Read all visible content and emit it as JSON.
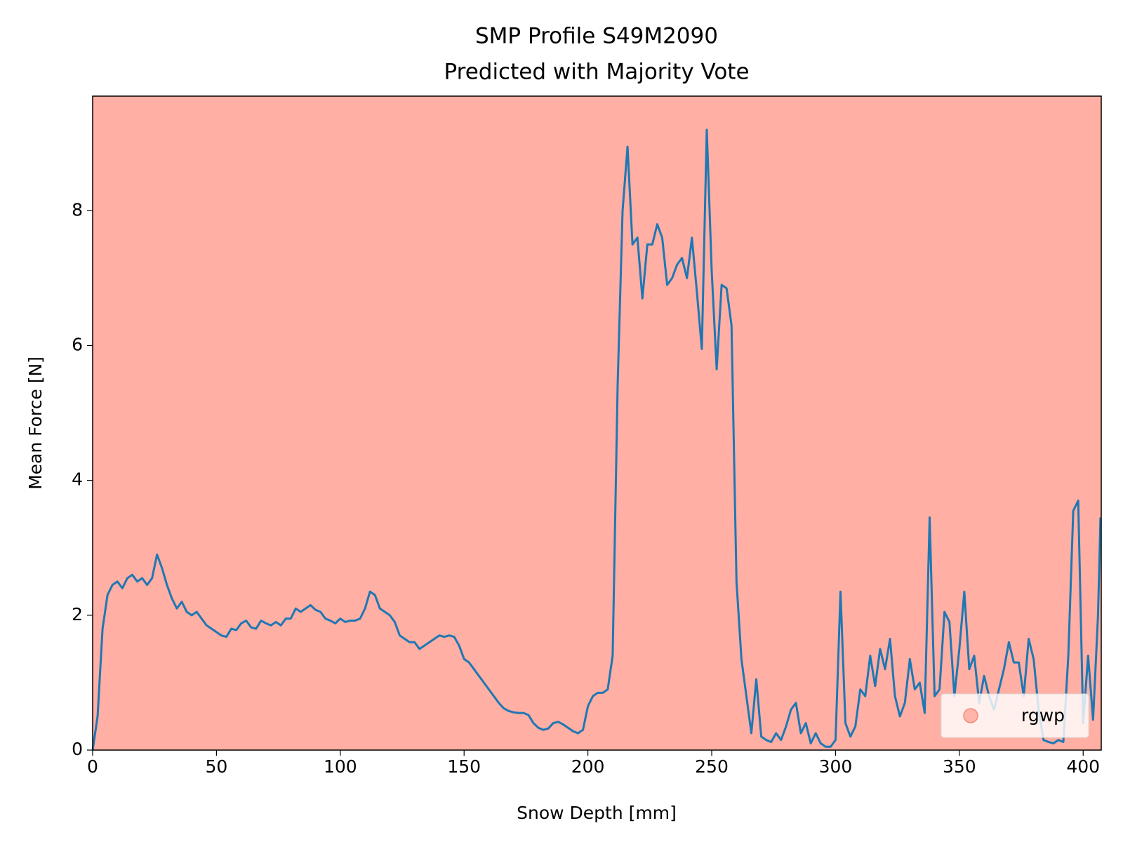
{
  "chart_data": {
    "type": "line",
    "title": "SMP Profile S49M2090",
    "subtitle": "Predicted with Majority Vote",
    "x_label": "Snow Depth [mm]",
    "y_label": "Mean Force [N]",
    "x": [
      0,
      2,
      4,
      6,
      8,
      10,
      12,
      14,
      16,
      18,
      20,
      22,
      24,
      26,
      28,
      30,
      32,
      34,
      36,
      38,
      40,
      42,
      44,
      46,
      48,
      50,
      52,
      54,
      56,
      58,
      60,
      62,
      64,
      66,
      68,
      70,
      72,
      74,
      76,
      78,
      80,
      82,
      84,
      86,
      88,
      90,
      92,
      94,
      96,
      98,
      100,
      102,
      104,
      106,
      108,
      110,
      112,
      114,
      116,
      118,
      120,
      122,
      124,
      126,
      128,
      130,
      132,
      134,
      136,
      138,
      140,
      142,
      144,
      146,
      148,
      150,
      152,
      154,
      156,
      158,
      160,
      162,
      164,
      166,
      168,
      170,
      172,
      174,
      176,
      178,
      180,
      182,
      184,
      186,
      188,
      190,
      192,
      194,
      196,
      198,
      200,
      202,
      204,
      206,
      208,
      210,
      212,
      214,
      216,
      218,
      220,
      222,
      224,
      226,
      228,
      230,
      232,
      234,
      236,
      238,
      240,
      242,
      244,
      246,
      248,
      250,
      252,
      254,
      256,
      258,
      260,
      262,
      264,
      266,
      268,
      270,
      272,
      274,
      276,
      278,
      280,
      282,
      284,
      286,
      288,
      290,
      292,
      294,
      296,
      298,
      300,
      302,
      304,
      306,
      308,
      310,
      312,
      314,
      316,
      318,
      320,
      322,
      324,
      326,
      328,
      330,
      332,
      334,
      336,
      338,
      340,
      342,
      344,
      346,
      348,
      350,
      352,
      354,
      356,
      358,
      360,
      362,
      364,
      366,
      368,
      370,
      372,
      374,
      376,
      378,
      380,
      382,
      384,
      386,
      388,
      390,
      392,
      394,
      396,
      398,
      400,
      402,
      404,
      406,
      407
    ],
    "series": [
      {
        "color": "#1f77b4",
        "values": [
          0,
          0.5,
          1.8,
          2.3,
          2.45,
          2.5,
          2.4,
          2.55,
          2.6,
          2.5,
          2.55,
          2.45,
          2.55,
          2.9,
          2.7,
          2.45,
          2.25,
          2.1,
          2.2,
          2.05,
          2.0,
          2.05,
          1.95,
          1.85,
          1.8,
          1.75,
          1.7,
          1.68,
          1.8,
          1.78,
          1.88,
          1.92,
          1.82,
          1.8,
          1.92,
          1.88,
          1.85,
          1.9,
          1.85,
          1.95,
          1.95,
          2.1,
          2.05,
          2.1,
          2.15,
          2.08,
          2.05,
          1.95,
          1.92,
          1.88,
          1.95,
          1.9,
          1.92,
          1.92,
          1.95,
          2.1,
          2.35,
          2.3,
          2.1,
          2.05,
          2.0,
          1.9,
          1.7,
          1.65,
          1.6,
          1.6,
          1.5,
          1.55,
          1.6,
          1.65,
          1.7,
          1.68,
          1.7,
          1.68,
          1.55,
          1.35,
          1.3,
          1.2,
          1.1,
          1.0,
          0.9,
          0.8,
          0.7,
          0.62,
          0.58,
          0.56,
          0.55,
          0.55,
          0.52,
          0.4,
          0.33,
          0.3,
          0.32,
          0.4,
          0.42,
          0.38,
          0.33,
          0.28,
          0.25,
          0.3,
          0.65,
          0.8,
          0.85,
          0.85,
          0.9,
          1.4,
          5.4,
          8.0,
          8.95,
          7.5,
          7.6,
          6.7,
          7.5,
          7.5,
          7.8,
          7.6,
          6.9,
          7.0,
          7.2,
          7.3,
          7.0,
          7.6,
          6.8,
          5.95,
          9.2,
          7.1,
          5.65,
          6.9,
          6.85,
          6.3,
          2.5,
          1.35,
          0.8,
          0.25,
          1.05,
          0.2,
          0.15,
          0.12,
          0.25,
          0.15,
          0.35,
          0.6,
          0.7,
          0.25,
          0.4,
          0.1,
          0.25,
          0.1,
          0.05,
          0.05,
          0.15,
          2.35,
          0.4,
          0.2,
          0.35,
          0.9,
          0.8,
          1.4,
          0.95,
          1.5,
          1.2,
          1.65,
          0.8,
          0.5,
          0.7,
          1.35,
          0.9,
          1.0,
          0.55,
          3.45,
          0.8,
          0.9,
          2.05,
          1.9,
          0.8,
          1.5,
          2.35,
          1.2,
          1.4,
          0.7,
          1.1,
          0.8,
          0.6,
          0.9,
          1.2,
          1.6,
          1.3,
          1.3,
          0.8,
          1.65,
          1.35,
          0.6,
          0.15,
          0.12,
          0.1,
          0.15,
          0.12,
          1.4,
          3.55,
          3.7,
          0.4,
          1.4,
          0.45,
          2.0,
          3.45
        ]
      }
    ],
    "background": {
      "label": "rgwp",
      "color": "#ffafa3"
    },
    "legend": "lower right",
    "xlim": [
      0,
      407.3
    ],
    "xticks": [
      0,
      50,
      100,
      150,
      200,
      250,
      300,
      350,
      400
    ],
    "ylim": [
      0,
      9.7
    ],
    "yticks": [
      0,
      2,
      4,
      6,
      8
    ]
  }
}
